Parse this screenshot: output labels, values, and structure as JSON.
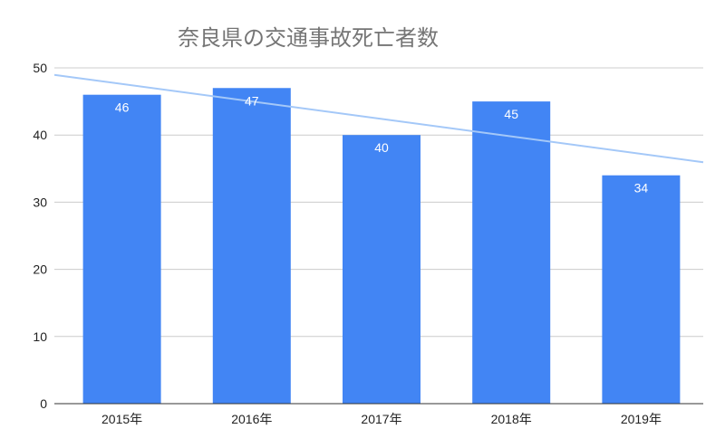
{
  "chart_data": {
    "type": "bar",
    "title": "奈良県の交通事故死亡者数",
    "categories": [
      "2015年",
      "2016年",
      "2017年",
      "2018年",
      "2019年"
    ],
    "values": [
      46,
      47,
      40,
      45,
      34
    ],
    "data_labels": [
      "46",
      "47",
      "40",
      "45",
      "34"
    ],
    "ylim": [
      0,
      50
    ],
    "y_ticks": [
      0,
      10,
      20,
      30,
      40,
      50
    ],
    "y_tick_labels": [
      "0",
      "10",
      "20",
      "30",
      "40",
      "50"
    ],
    "grid": true,
    "trendline": true,
    "xlabel": "",
    "ylabel": "",
    "colors": {
      "bar": "#4285f4",
      "trendline": "#a4c8f8",
      "grid": "#cccccc",
      "axis": "#333333"
    }
  }
}
